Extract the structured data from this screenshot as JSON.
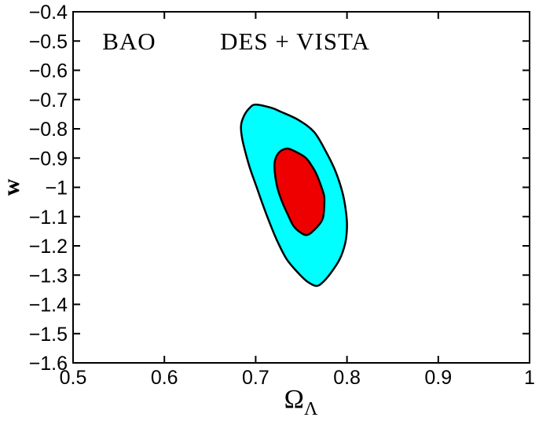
{
  "figure": {
    "background": "#ffffff",
    "axis_color": "#000000"
  },
  "chart_data": {
    "type": "contour",
    "title": "",
    "xlabel": {
      "symbol": "Ω",
      "subscript": "Λ"
    },
    "ylabel": "w",
    "xlim": [
      0.5,
      1.0
    ],
    "ylim": [
      -1.6,
      -0.4
    ],
    "grid": false,
    "legend": "none",
    "xticks": [
      0.5,
      0.6,
      0.7,
      0.8,
      0.9,
      1.0
    ],
    "xtick_labels": [
      "0.5",
      "0.6",
      "0.7",
      "0.8",
      "0.9",
      "1"
    ],
    "yticks": [
      -0.4,
      -0.5,
      -0.6,
      -0.7,
      -0.8,
      -0.9,
      -1.0,
      -1.1,
      -1.2,
      -1.3,
      -1.4,
      -1.5,
      -1.6
    ],
    "ytick_labels": [
      "−0.4",
      "−0.5",
      "−0.6",
      "−0.7",
      "−0.8",
      "−0.9",
      "−1",
      "−1.1",
      "−1.2",
      "−1.3",
      "−1.4",
      "−1.5",
      "−1.6"
    ],
    "annotations": [
      {
        "text": "BAO",
        "x": 0.532,
        "y": -0.529
      },
      {
        "text": "DES + VISTA",
        "x": 0.661,
        "y": -0.529
      }
    ],
    "series": [
      {
        "name": "outer-contour",
        "label": "outer confidence contour",
        "fill": "#00ffff",
        "stroke": "#000000",
        "points": [
          [
            0.7,
            -0.717
          ],
          [
            0.717,
            -0.728
          ],
          [
            0.727,
            -0.741
          ],
          [
            0.747,
            -0.77
          ],
          [
            0.764,
            -0.811
          ],
          [
            0.777,
            -0.878
          ],
          [
            0.787,
            -0.942
          ],
          [
            0.795,
            -1.017
          ],
          [
            0.799,
            -1.085
          ],
          [
            0.8,
            -1.138
          ],
          [
            0.798,
            -1.192
          ],
          [
            0.792,
            -1.246
          ],
          [
            0.782,
            -1.294
          ],
          [
            0.773,
            -1.326
          ],
          [
            0.766,
            -1.337
          ],
          [
            0.756,
            -1.321
          ],
          [
            0.747,
            -1.294
          ],
          [
            0.734,
            -1.246
          ],
          [
            0.723,
            -1.179
          ],
          [
            0.714,
            -1.111
          ],
          [
            0.707,
            -1.052
          ],
          [
            0.701,
            -0.999
          ],
          [
            0.694,
            -0.937
          ],
          [
            0.689,
            -0.883
          ],
          [
            0.685,
            -0.83
          ],
          [
            0.684,
            -0.789
          ],
          [
            0.687,
            -0.757
          ],
          [
            0.693,
            -0.73
          ]
        ]
      },
      {
        "name": "inner-contour",
        "label": "inner confidence contour",
        "fill": "#ee0000",
        "stroke": "#000000",
        "points": [
          [
            0.738,
            -0.87
          ],
          [
            0.754,
            -0.897
          ],
          [
            0.762,
            -0.929
          ],
          [
            0.767,
            -0.958
          ],
          [
            0.772,
            -0.999
          ],
          [
            0.775,
            -1.031
          ],
          [
            0.775,
            -1.066
          ],
          [
            0.773,
            -1.111
          ],
          [
            0.764,
            -1.146
          ],
          [
            0.756,
            -1.163
          ],
          [
            0.748,
            -1.152
          ],
          [
            0.741,
            -1.13
          ],
          [
            0.734,
            -1.085
          ],
          [
            0.729,
            -1.05
          ],
          [
            0.724,
            -1.004
          ],
          [
            0.721,
            -0.95
          ],
          [
            0.721,
            -0.91
          ],
          [
            0.725,
            -0.883
          ],
          [
            0.731,
            -0.87
          ]
        ]
      }
    ]
  }
}
